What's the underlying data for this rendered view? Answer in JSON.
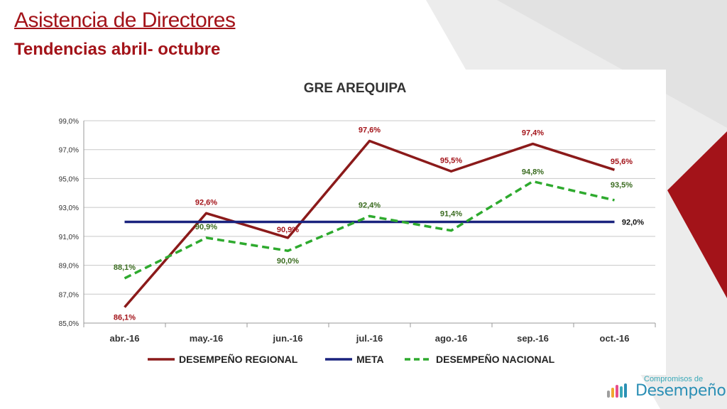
{
  "slide": {
    "title": "Asistencia de Directores",
    "subtitle": "Tendencias abril- octubre",
    "logo_top": "Compromisos de",
    "logo_main": "Desempeño",
    "colors": {
      "accent": "#a31319",
      "background_shape": "#ececec",
      "logo": "#2b8fb5"
    }
  },
  "chart_data": {
    "type": "line",
    "title": "GRE AREQUIPA",
    "categories": [
      "abr.-16",
      "may.-16",
      "jun.-16",
      "jul.-16",
      "ago.-16",
      "sep.-16",
      "oct.-16"
    ],
    "ylim": [
      85,
      99
    ],
    "yticks": [
      "85,0%",
      "87,0%",
      "89,0%",
      "91,0%",
      "93,0%",
      "95,0%",
      "97,0%",
      "99,0%"
    ],
    "grid": true,
    "legend_position": "bottom",
    "series": [
      {
        "name": "DESEMPEÑO REGIONAL",
        "values": [
          86.1,
          92.6,
          90.9,
          97.6,
          95.5,
          97.4,
          95.6
        ],
        "labels": [
          "86,1%",
          "92,6%",
          "90,9%",
          "97,6%",
          "95,5%",
          "97,4%",
          "95,6%"
        ],
        "color": "#8b1a1a",
        "style": "solid"
      },
      {
        "name": "META",
        "values": [
          92.0,
          92.0,
          92.0,
          92.0,
          92.0,
          92.0,
          92.0
        ],
        "labels": [
          "",
          "",
          "",
          "",
          "",
          "",
          "92,0%"
        ],
        "color": "#1a237e",
        "style": "solid"
      },
      {
        "name": "DESEMPEÑO NACIONAL",
        "values": [
          88.1,
          90.9,
          90.0,
          92.4,
          91.4,
          94.8,
          93.5
        ],
        "labels": [
          "88,1%",
          "90,9%",
          "90,0%",
          "92,4%",
          "91,4%",
          "94,8%",
          "93,5%"
        ],
        "color": "#2eaa2e",
        "style": "dashed"
      }
    ]
  }
}
